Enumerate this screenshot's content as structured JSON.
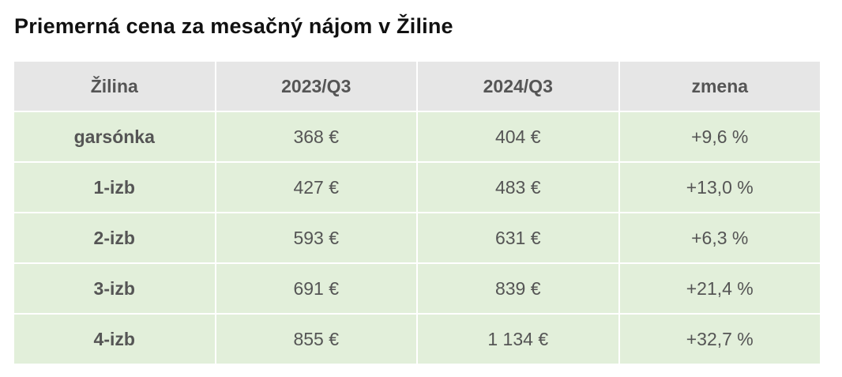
{
  "header": {
    "title": "Priemerná cena za mesačný nájom v Žiline"
  },
  "table": {
    "columns": [
      "Žilina",
      "2023/Q3",
      "2024/Q3",
      "zmena"
    ],
    "rows": [
      [
        "garsónka",
        "368 €",
        "404 €",
        "+9,6 %"
      ],
      [
        "1-izb",
        "427 €",
        "483 €",
        "+13,0 %"
      ],
      [
        "2-izb",
        "593 €",
        "631 €",
        "+6,3 %"
      ],
      [
        "3-izb",
        "691 €",
        "839 €",
        "+21,4 %"
      ],
      [
        "4-izb",
        "855 €",
        "1 134 €",
        "+32,7 %"
      ]
    ]
  }
}
